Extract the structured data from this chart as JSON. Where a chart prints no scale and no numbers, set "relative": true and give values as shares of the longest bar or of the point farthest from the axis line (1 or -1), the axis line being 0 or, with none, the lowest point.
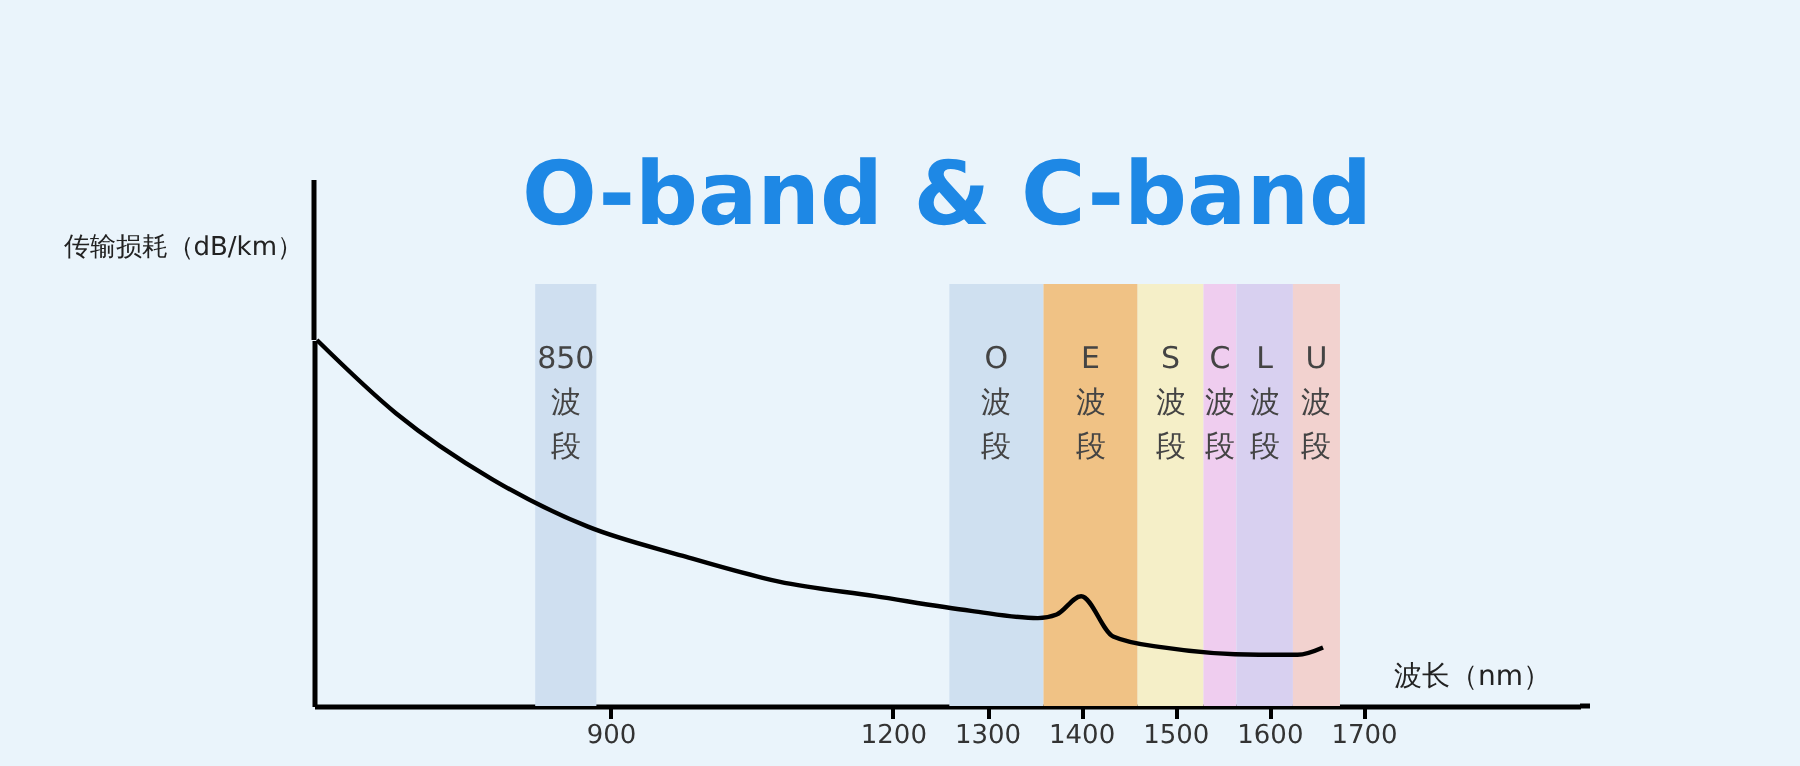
{
  "chart_data": {
    "type": "line",
    "title": "O-band & C-band",
    "xlabel": "波长（nm）",
    "ylabel": "传输损耗（dB/km）",
    "relative": true,
    "x": [
      588,
      672,
      774,
      876,
      977,
      1079,
      1181,
      1283,
      1354,
      1374,
      1400,
      1434,
      1487,
      1589,
      1630,
      1657
    ],
    "series": [
      {
        "color": "#000000",
        "values": [
          1.0,
          0.8,
          0.62,
          0.49,
          0.41,
          0.34,
          0.3,
          0.26,
          0.24,
          0.25,
          0.3,
          0.19,
          0.16,
          0.14,
          0.14,
          0.16
        ]
      }
    ],
    "xlim": [
      585,
      1930
    ],
    "xticks": [
      900,
      1200,
      1300,
      1400,
      1500,
      1600,
      1700
    ],
    "bands": [
      {
        "axis": "x",
        "from": 820,
        "to": 885,
        "label": "850波段",
        "color": "#cfdff0"
      },
      {
        "axis": "x",
        "from": 1260,
        "to": 1360,
        "label": "O波段",
        "color": "#cfe0f0"
      },
      {
        "axis": "x",
        "from": 1360,
        "to": 1460,
        "label": "E波段",
        "color": "#f0c285"
      },
      {
        "axis": "x",
        "from": 1460,
        "to": 1530,
        "label": "S波段",
        "color": "#f5efc8"
      },
      {
        "axis": "x",
        "from": 1530,
        "to": 1565,
        "label": "C波段",
        "color": "#efcdef"
      },
      {
        "axis": "x",
        "from": 1565,
        "to": 1625,
        "label": "L波段",
        "color": "#d8d0f0"
      },
      {
        "axis": "x",
        "from": 1625,
        "to": 1675,
        "label": "U波段",
        "color": "#f2d2cf"
      }
    ],
    "grid": false,
    "marker": "none",
    "line_style": "solid"
  }
}
